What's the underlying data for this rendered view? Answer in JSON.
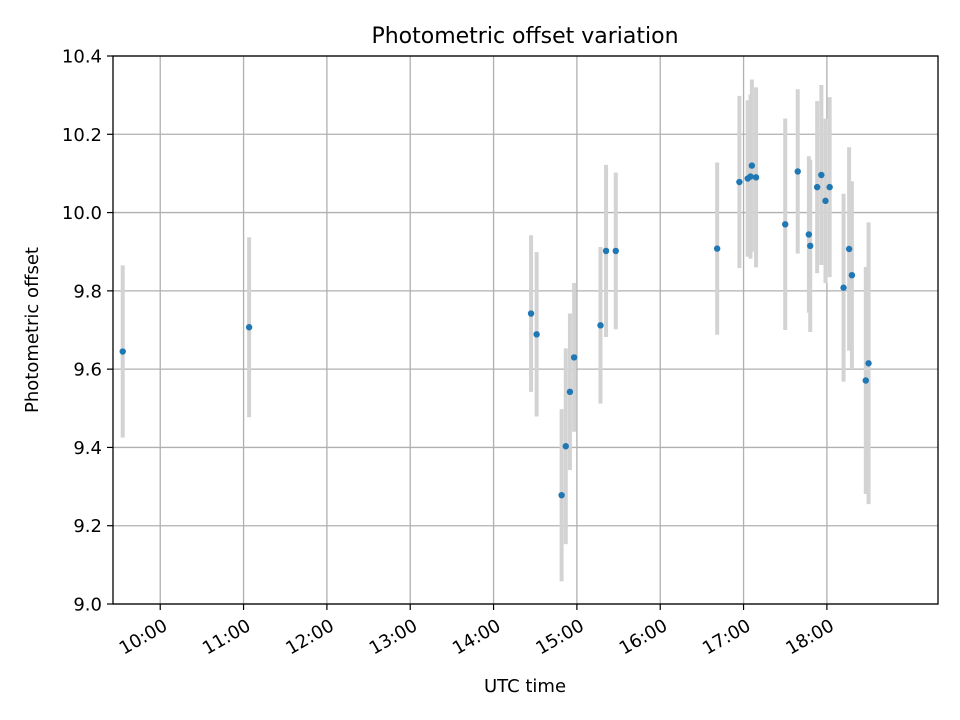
{
  "chart_data": {
    "type": "scatter",
    "title": "Photometric offset variation",
    "xlabel": "UTC time",
    "ylabel": "Photometric offset",
    "x_unit": "time (HH:MM, UTC)",
    "xlim": [
      "09:26",
      "19:20"
    ],
    "ylim": [
      9.0,
      10.4
    ],
    "x_ticks": [
      "10:00",
      "11:00",
      "12:00",
      "13:00",
      "14:00",
      "15:00",
      "16:00",
      "17:00",
      "18:00"
    ],
    "y_ticks": [
      "9.0",
      "9.2",
      "9.4",
      "9.6",
      "9.8",
      "10.0",
      "10.2",
      "10.4"
    ],
    "grid": true,
    "legend": "none",
    "colors": {
      "point": "#1f77b4",
      "errorbar": "#d3d3d3",
      "grid": "#b0b0b0"
    },
    "series": [
      {
        "points": [
          {
            "x": "09:33",
            "y": 9.645,
            "err": 0.22
          },
          {
            "x": "11:04",
            "y": 9.707,
            "err": 0.23
          },
          {
            "x": "14:27",
            "y": 9.742,
            "err": 0.2
          },
          {
            "x": "14:31",
            "y": 9.689,
            "err": 0.21
          },
          {
            "x": "14:49",
            "y": 9.278,
            "err": 0.22
          },
          {
            "x": "14:52",
            "y": 9.403,
            "err": 0.25
          },
          {
            "x": "14:55",
            "y": 9.542,
            "err": 0.2
          },
          {
            "x": "14:58",
            "y": 9.63,
            "err": 0.19
          },
          {
            "x": "15:17",
            "y": 9.712,
            "err": 0.2
          },
          {
            "x": "15:21",
            "y": 9.902,
            "err": 0.22
          },
          {
            "x": "15:28",
            "y": 9.902,
            "err": 0.2
          },
          {
            "x": "16:41",
            "y": 9.908,
            "err": 0.22
          },
          {
            "x": "16:57",
            "y": 10.078,
            "err": 0.22
          },
          {
            "x": "17:03",
            "y": 10.087,
            "err": 0.2
          },
          {
            "x": "17:05",
            "y": 10.092,
            "err": 0.21
          },
          {
            "x": "17:06",
            "y": 10.12,
            "err": 0.22
          },
          {
            "x": "17:09",
            "y": 10.09,
            "err": 0.23
          },
          {
            "x": "17:30",
            "y": 9.97,
            "err": 0.27
          },
          {
            "x": "17:39",
            "y": 10.105,
            "err": 0.21
          },
          {
            "x": "17:47",
            "y": 9.944,
            "err": 0.2
          },
          {
            "x": "17:48",
            "y": 9.915,
            "err": 0.22
          },
          {
            "x": "17:53",
            "y": 10.065,
            "err": 0.22
          },
          {
            "x": "17:56",
            "y": 10.096,
            "err": 0.23
          },
          {
            "x": "17:59",
            "y": 10.03,
            "err": 0.21
          },
          {
            "x": "18:02",
            "y": 10.065,
            "err": 0.23
          },
          {
            "x": "18:12",
            "y": 9.808,
            "err": 0.24
          },
          {
            "x": "18:16",
            "y": 9.907,
            "err": 0.26
          },
          {
            "x": "18:18",
            "y": 9.84,
            "err": 0.24
          },
          {
            "x": "18:28",
            "y": 9.571,
            "err": 0.29
          },
          {
            "x": "18:30",
            "y": 9.615,
            "err": 0.36
          }
        ]
      }
    ]
  }
}
